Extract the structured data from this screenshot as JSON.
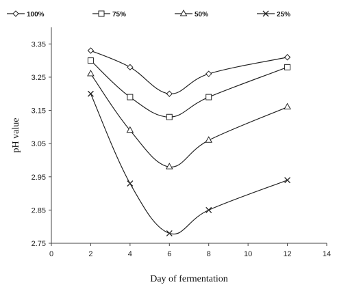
{
  "chart_data": {
    "type": "line",
    "xlabel": "Day of fermentation",
    "ylabel": "pH value",
    "xlim": [
      0,
      14
    ],
    "ylim": [
      2.75,
      3.4
    ],
    "xticks": [
      0,
      2,
      4,
      6,
      8,
      10,
      12,
      14
    ],
    "yticks": [
      2.75,
      2.85,
      2.95,
      3.05,
      3.15,
      3.25,
      3.35
    ],
    "grid": false,
    "legend_position": "top",
    "x": [
      2,
      4,
      6,
      8,
      12
    ],
    "series": [
      {
        "name": "100%",
        "marker": "diamond",
        "values": [
          3.33,
          3.28,
          3.2,
          3.26,
          3.31
        ]
      },
      {
        "name": "75%",
        "marker": "square",
        "values": [
          3.3,
          3.19,
          3.13,
          3.19,
          3.28
        ]
      },
      {
        "name": "50%",
        "marker": "triangle",
        "values": [
          3.26,
          3.09,
          2.98,
          3.06,
          3.16
        ]
      },
      {
        "name": "25%",
        "marker": "cross",
        "values": [
          3.2,
          2.93,
          2.78,
          2.85,
          2.94
        ]
      }
    ]
  }
}
